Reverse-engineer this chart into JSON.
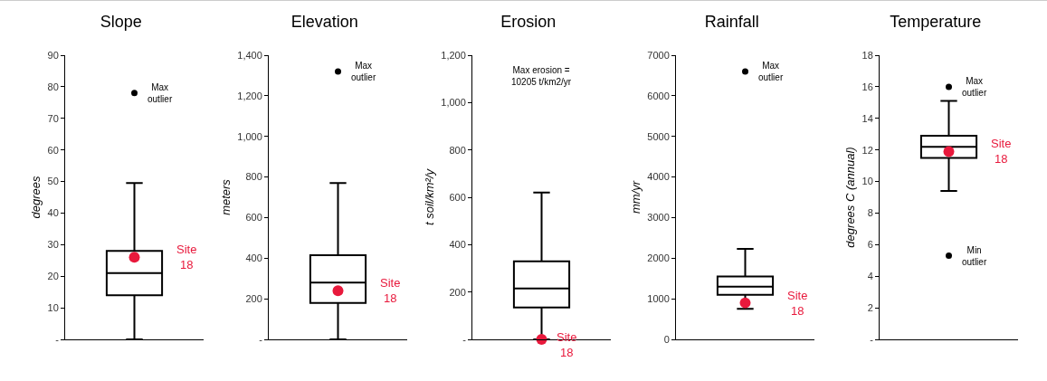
{
  "chart_data": [
    {
      "type": "box",
      "title": "Slope",
      "ylabel": "degrees",
      "categories": [
        null
      ],
      "color": "#000000",
      "boxes": [
        {
          "low": 0,
          "q1": 14,
          "median": 21,
          "q3": 28,
          "high": 49.5,
          "outliers": [
            78
          ]
        }
      ],
      "series": [
        {
          "type": "scatter",
          "color": "#e8193c",
          "values": [
            26
          ]
        }
      ],
      "ylim": [
        0,
        90
      ],
      "yticks": [
        {
          "value": 0,
          "label": "-"
        },
        10,
        20,
        30,
        40,
        50,
        60,
        70,
        80,
        90
      ],
      "grid": false,
      "annotations": [
        "Max\noutlier",
        "Site\n18"
      ]
    },
    {
      "type": "box",
      "title": "Elevation",
      "ylabel": "meters",
      "categories": [
        null
      ],
      "color": "#000000",
      "boxes": [
        {
          "low": 0,
          "q1": 180,
          "median": 280,
          "q3": 415,
          "high": 770,
          "outliers": [
            1320
          ]
        }
      ],
      "series": [
        {
          "type": "scatter",
          "color": "#e8193c",
          "values": [
            240
          ]
        }
      ],
      "ylim": [
        0,
        1400
      ],
      "yticks": [
        {
          "value": 0,
          "label": "-"
        },
        200,
        400,
        600,
        800,
        {
          "value": 1000,
          "label": "1,000"
        },
        {
          "value": 1200,
          "label": "1,200"
        },
        {
          "value": 1400,
          "label": "1,400"
        }
      ],
      "grid": false,
      "annotations": [
        "Max\noutlier",
        "Site\n18"
      ]
    },
    {
      "type": "box",
      "title": "Erosion",
      "ylabel": "t soil/km²/y",
      "categories": [
        null
      ],
      "color": "#000000",
      "boxes": [
        {
          "low": 0,
          "q1": 135,
          "median": 215,
          "q3": 330,
          "high": 620
        }
      ],
      "series": [
        {
          "type": "scatter",
          "color": "#e8193c",
          "values": [
            0
          ]
        }
      ],
      "ylim": [
        0,
        1200
      ],
      "yticks": [
        {
          "value": 0,
          "label": "-"
        },
        200,
        400,
        600,
        800,
        {
          "value": 1000,
          "label": "1,000"
        },
        {
          "value": 1200,
          "label": "1,200"
        }
      ],
      "grid": false,
      "annotations": [
        "Site\n18",
        "Max erosion =\n10205 t/km2/yr"
      ]
    },
    {
      "type": "box",
      "title": "Rainfall",
      "ylabel": "mm/yr",
      "categories": [
        null
      ],
      "color": "#000000",
      "boxes": [
        {
          "low": 750,
          "q1": 1100,
          "median": 1300,
          "q3": 1550,
          "high": 2230,
          "outliers": [
            6600
          ]
        }
      ],
      "series": [
        {
          "type": "scatter",
          "color": "#e8193c",
          "values": [
            900
          ]
        }
      ],
      "ylim": [
        0,
        7000
      ],
      "yticks": [
        0,
        1000,
        2000,
        3000,
        4000,
        5000,
        6000,
        7000
      ],
      "grid": false,
      "annotations": [
        "Max\noutlier",
        "Site\n18"
      ]
    },
    {
      "type": "box",
      "title": "Temperature",
      "ylabel": "degrees C (annual)",
      "categories": [
        null
      ],
      "color": "#000000",
      "boxes": [
        {
          "low": 9.4,
          "q1": 11.5,
          "median": 12.2,
          "q3": 12.9,
          "high": 15.1,
          "outliers": [
            16,
            5.3
          ]
        }
      ],
      "series": [
        {
          "type": "scatter",
          "color": "#e8193c",
          "values": [
            11.9
          ]
        }
      ],
      "ylim": [
        0,
        18
      ],
      "yticks": [
        {
          "value": 0,
          "label": "-"
        },
        2,
        4,
        6,
        8,
        10,
        12,
        14,
        16,
        18
      ],
      "grid": false,
      "annotations": [
        "Max\noutlier",
        "Min\noutlier",
        "Site\n18"
      ]
    }
  ]
}
